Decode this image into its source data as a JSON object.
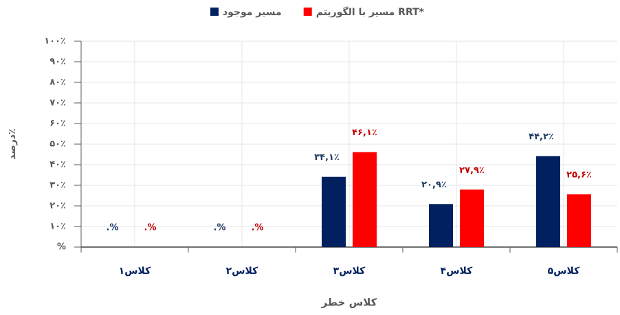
{
  "chart_data": {
    "type": "bar",
    "xlabel": "کلاس خطر",
    "ylabel": "درصد٪",
    "categories": [
      "کلاس۱",
      "کلاس۲",
      "کلاس۳",
      "کلاس۴",
      "کلاس۵"
    ],
    "series": [
      {
        "name": "مسیر موجود",
        "color": "#002060",
        "values": [
          0,
          0,
          34.1,
          20.9,
          44.2
        ],
        "value_labels": [
          ".%",
          ".%",
          "۳۴,۱٪",
          "۲۰,۹٪",
          "۴۴,۲٪"
        ]
      },
      {
        "name": "مسیر با الگوریتم RRT*",
        "color": "#ff0000",
        "values": [
          0,
          0,
          46.1,
          27.9,
          25.6
        ],
        "value_labels": [
          ".%",
          ".%",
          "۴۶,۱٪",
          "۲۷,۹٪",
          "۲۵,۶٪"
        ]
      }
    ],
    "ylim": [
      0,
      100
    ],
    "yticks": [
      {
        "value": 0,
        "label": "%"
      },
      {
        "value": 10,
        "label": "۱۰٪"
      },
      {
        "value": 20,
        "label": "۲۰٪"
      },
      {
        "value": 30,
        "label": "۳۰٪"
      },
      {
        "value": 40,
        "label": "۴۰٪"
      },
      {
        "value": 50,
        "label": "۵۰٪"
      },
      {
        "value": 60,
        "label": "۶۰٪"
      },
      {
        "value": 70,
        "label": "۷۰٪"
      },
      {
        "value": 80,
        "label": "۸۰٪"
      },
      {
        "value": 90,
        "label": "۹۰٪"
      },
      {
        "value": 100,
        "label": "۱۰۰٪"
      }
    ],
    "grid": true,
    "legend": "top"
  }
}
